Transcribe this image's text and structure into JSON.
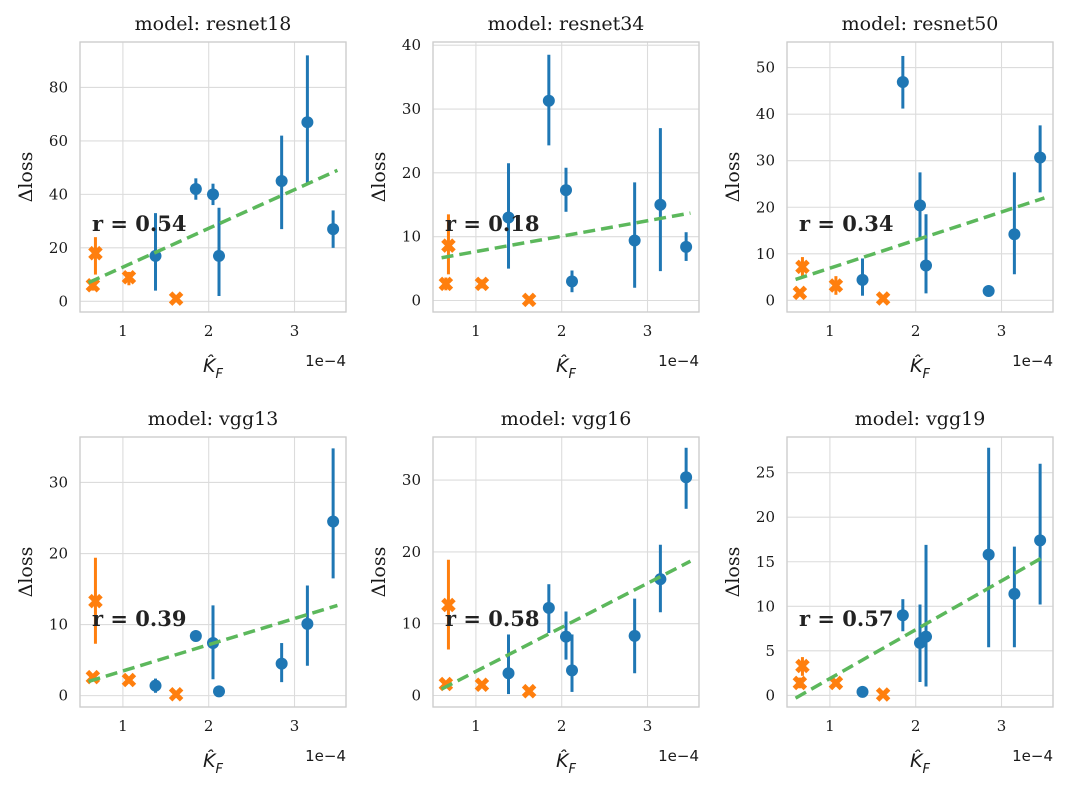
{
  "colors": {
    "blue": "#1f77b4",
    "orange": "#ff7f0e",
    "green": "#5cb85c"
  },
  "chart_data": [
    {
      "type": "scatter",
      "title": "model: resnet18",
      "xlabel": "\\hat{K}_F",
      "xlabel_display": "K̂",
      "xlabel_sub": "F",
      "ylabel": "Δloss",
      "x_offset_text": "1e−4",
      "xlim": [
        0.5,
        3.6
      ],
      "ylim": [
        -4,
        97
      ],
      "xticks": [
        1,
        2,
        3
      ],
      "yticks": [
        0,
        20,
        40,
        60,
        80
      ],
      "r_text": "r = 0.54",
      "fit_line": [
        [
          0.6,
          7
        ],
        [
          3.5,
          49
        ]
      ],
      "series": [
        {
          "name": "blue",
          "marker": "circle",
          "points": [
            {
              "x": 1.38,
              "y": 17,
              "err": [
                4,
                33
              ]
            },
            {
              "x": 1.85,
              "y": 42,
              "err": [
                38,
                46
              ]
            },
            {
              "x": 2.05,
              "y": 40,
              "err": [
                36,
                44
              ]
            },
            {
              "x": 2.12,
              "y": 17,
              "err": [
                2,
                35
              ]
            },
            {
              "x": 2.85,
              "y": 45,
              "err": [
                27,
                62
              ]
            },
            {
              "x": 3.15,
              "y": 67,
              "err": [
                44,
                92
              ]
            },
            {
              "x": 3.45,
              "y": 27,
              "err": [
                20,
                34
              ]
            }
          ]
        },
        {
          "name": "orange",
          "marker": "x",
          "points": [
            {
              "x": 0.65,
              "y": 6,
              "err": [
                4,
                8
              ]
            },
            {
              "x": 0.68,
              "y": 18,
              "err": [
                10,
                24
              ]
            },
            {
              "x": 1.07,
              "y": 9,
              "err": [
                6,
                11
              ]
            },
            {
              "x": 1.62,
              "y": 1,
              "err": [
                0,
                2
              ]
            }
          ]
        }
      ]
    },
    {
      "type": "scatter",
      "title": "model: resnet34",
      "xlabel": "\\hat{K}_F",
      "xlabel_display": "K̂",
      "xlabel_sub": "F",
      "ylabel": "Δloss",
      "x_offset_text": "1e−4",
      "xlim": [
        0.5,
        3.6
      ],
      "ylim": [
        -1.8,
        40.5
      ],
      "xticks": [
        1,
        2,
        3
      ],
      "yticks": [
        0,
        10,
        20,
        30,
        40
      ],
      "r_text": "r = 0.18",
      "fit_line": [
        [
          0.6,
          6.7
        ],
        [
          3.5,
          13.7
        ]
      ],
      "series": [
        {
          "name": "blue",
          "marker": "circle",
          "points": [
            {
              "x": 1.38,
              "y": 13,
              "err": [
                5,
                21.5
              ]
            },
            {
              "x": 1.85,
              "y": 31.3,
              "err": [
                24.3,
                38.5
              ]
            },
            {
              "x": 2.05,
              "y": 17.3,
              "err": [
                13.9,
                20.8
              ]
            },
            {
              "x": 2.12,
              "y": 3,
              "err": [
                1.3,
                4.7
              ]
            },
            {
              "x": 2.85,
              "y": 9.4,
              "err": [
                2,
                18.5
              ]
            },
            {
              "x": 3.15,
              "y": 15,
              "err": [
                4.6,
                27
              ]
            },
            {
              "x": 3.45,
              "y": 8.4,
              "err": [
                6.2,
                10.7
              ]
            }
          ]
        },
        {
          "name": "orange",
          "marker": "x",
          "points": [
            {
              "x": 0.65,
              "y": 2.6,
              "err": [
                1.6,
                3.6
              ]
            },
            {
              "x": 0.68,
              "y": 8.6,
              "err": [
                4.1,
                13.5
              ]
            },
            {
              "x": 1.07,
              "y": 2.6,
              "err": [
                1.9,
                3.3
              ]
            },
            {
              "x": 1.62,
              "y": 0.1,
              "err": [
                0,
                0.5
              ]
            }
          ]
        }
      ]
    },
    {
      "type": "scatter",
      "title": "model: resnet50",
      "xlabel": "\\hat{K}_F",
      "xlabel_display": "K̂",
      "xlabel_sub": "F",
      "ylabel": "Δloss",
      "x_offset_text": "1e−4",
      "xlim": [
        0.5,
        3.6
      ],
      "ylim": [
        -2.5,
        55.5
      ],
      "xticks": [
        1,
        2,
        3
      ],
      "yticks": [
        0,
        10,
        20,
        30,
        40,
        50
      ],
      "r_text": "r = 0.34",
      "fit_line": [
        [
          0.6,
          4.5
        ],
        [
          3.5,
          22
        ]
      ],
      "series": [
        {
          "name": "blue",
          "marker": "circle",
          "points": [
            {
              "x": 1.38,
              "y": 4.4,
              "err": [
                1,
                9
              ]
            },
            {
              "x": 1.85,
              "y": 46.9,
              "err": [
                41.2,
                52.5
              ]
            },
            {
              "x": 2.05,
              "y": 20.4,
              "err": [
                13.4,
                27.5
              ]
            },
            {
              "x": 2.12,
              "y": 7.5,
              "err": [
                1.5,
                18.5
              ]
            },
            {
              "x": 2.85,
              "y": 2,
              "err": [
                1.5,
                2.5
              ]
            },
            {
              "x": 3.15,
              "y": 14.2,
              "err": [
                5.6,
                27.5
              ]
            },
            {
              "x": 3.45,
              "y": 30.7,
              "err": [
                23.2,
                37.6
              ]
            }
          ]
        },
        {
          "name": "orange",
          "marker": "x",
          "points": [
            {
              "x": 0.65,
              "y": 1.6,
              "err": [
                1,
                2.2
              ]
            },
            {
              "x": 0.68,
              "y": 7.2,
              "err": [
                4.8,
                9.3
              ]
            },
            {
              "x": 1.07,
              "y": 3.2,
              "err": [
                1.2,
                5.2
              ]
            },
            {
              "x": 1.62,
              "y": 0.4,
              "err": [
                0,
                0.8
              ]
            }
          ]
        }
      ]
    },
    {
      "type": "scatter",
      "title": "model: vgg13",
      "xlabel": "\\hat{K}_F",
      "xlabel_display": "K̂",
      "xlabel_sub": "F",
      "ylabel": "Δloss",
      "x_offset_text": "1e−4",
      "xlim": [
        0.5,
        3.6
      ],
      "ylim": [
        -1.6,
        36.4
      ],
      "xticks": [
        1,
        2,
        3
      ],
      "yticks": [
        0,
        10,
        20,
        30
      ],
      "r_text": "r = 0.39",
      "fit_line": [
        [
          0.6,
          2
        ],
        [
          3.5,
          12.7
        ]
      ],
      "series": [
        {
          "name": "blue",
          "marker": "circle",
          "points": [
            {
              "x": 1.38,
              "y": 1.4,
              "err": [
                0.4,
                2.4
              ]
            },
            {
              "x": 1.85,
              "y": 8.4,
              "err": [
                8,
                8.8
              ]
            },
            {
              "x": 2.05,
              "y": 7.4,
              "err": [
                2.3,
                12.7
              ]
            },
            {
              "x": 2.12,
              "y": 0.6,
              "err": [
                0.4,
                0.8
              ]
            },
            {
              "x": 2.85,
              "y": 4.5,
              "err": [
                1.9,
                7.4
              ]
            },
            {
              "x": 3.15,
              "y": 10.1,
              "err": [
                4.2,
                15.5
              ]
            },
            {
              "x": 3.45,
              "y": 24.5,
              "err": [
                16.5,
                34.8
              ]
            }
          ]
        },
        {
          "name": "orange",
          "marker": "x",
          "points": [
            {
              "x": 0.65,
              "y": 2.6,
              "err": [
                2.1,
                3
              ]
            },
            {
              "x": 0.68,
              "y": 13.3,
              "err": [
                7.3,
                19.4
              ]
            },
            {
              "x": 1.07,
              "y": 2.2,
              "err": [
                1.7,
                2.6
              ]
            },
            {
              "x": 1.62,
              "y": 0.2,
              "err": [
                0,
                0.5
              ]
            }
          ]
        }
      ]
    },
    {
      "type": "scatter",
      "title": "model: vgg16",
      "xlabel": "\\hat{K}_F",
      "xlabel_display": "K̂",
      "xlabel_sub": "F",
      "ylabel": "Δloss",
      "x_offset_text": "1e−4",
      "xlim": [
        0.5,
        3.6
      ],
      "ylim": [
        -1.6,
        36
      ],
      "xticks": [
        1,
        2,
        3
      ],
      "yticks": [
        0,
        10,
        20,
        30
      ],
      "r_text": "r = 0.58",
      "fit_line": [
        [
          0.6,
          0.9
        ],
        [
          3.5,
          18.7
        ]
      ],
      "series": [
        {
          "name": "blue",
          "marker": "circle",
          "points": [
            {
              "x": 1.38,
              "y": 3.1,
              "err": [
                0.2,
                8.5
              ]
            },
            {
              "x": 1.85,
              "y": 12.2,
              "err": [
                8.7,
                15.5
              ]
            },
            {
              "x": 2.05,
              "y": 8.2,
              "err": [
                5,
                11.7
              ]
            },
            {
              "x": 2.12,
              "y": 3.5,
              "err": [
                0.5,
                8.5
              ]
            },
            {
              "x": 2.85,
              "y": 8.3,
              "err": [
                3.1,
                13.5
              ]
            },
            {
              "x": 3.15,
              "y": 16.2,
              "err": [
                11.6,
                21
              ]
            },
            {
              "x": 3.45,
              "y": 30.4,
              "err": [
                26,
                34.5
              ]
            }
          ]
        },
        {
          "name": "orange",
          "marker": "x",
          "points": [
            {
              "x": 0.65,
              "y": 1.6,
              "err": [
                1.1,
                2
              ]
            },
            {
              "x": 0.68,
              "y": 12.6,
              "err": [
                6.4,
                18.9
              ]
            },
            {
              "x": 1.07,
              "y": 1.5,
              "err": [
                1.1,
                1.9
              ]
            },
            {
              "x": 1.62,
              "y": 0.6,
              "err": [
                0.2,
                1
              ]
            }
          ]
        }
      ]
    },
    {
      "type": "scatter",
      "title": "model: vgg19",
      "xlabel": "\\hat{K}_F",
      "xlabel_display": "K̂",
      "xlabel_sub": "F",
      "ylabel": "Δloss",
      "x_offset_text": "1e−4",
      "xlim": [
        0.5,
        3.6
      ],
      "ylim": [
        -1.3,
        29
      ],
      "xticks": [
        1,
        2,
        3
      ],
      "yticks": [
        0,
        5,
        10,
        15,
        20,
        25
      ],
      "r_text": "r = 0.57",
      "fit_line": [
        [
          0.6,
          -0.3
        ],
        [
          3.5,
          15.6
        ]
      ],
      "series": [
        {
          "name": "blue",
          "marker": "circle",
          "points": [
            {
              "x": 1.38,
              "y": 0.4,
              "err": [
                0.2,
                0.6
              ]
            },
            {
              "x": 1.85,
              "y": 9,
              "err": [
                7.2,
                10.8
              ]
            },
            {
              "x": 2.05,
              "y": 5.9,
              "err": [
                1.5,
                10.2
              ]
            },
            {
              "x": 2.12,
              "y": 6.6,
              "err": [
                1,
                16.9
              ]
            },
            {
              "x": 2.85,
              "y": 15.8,
              "err": [
                5.4,
                27.8
              ]
            },
            {
              "x": 3.15,
              "y": 11.4,
              "err": [
                5.4,
                16.7
              ]
            },
            {
              "x": 3.45,
              "y": 17.4,
              "err": [
                10.2,
                26
              ]
            }
          ]
        },
        {
          "name": "orange",
          "marker": "x",
          "points": [
            {
              "x": 0.65,
              "y": 1.4,
              "err": [
                0.8,
                2
              ]
            },
            {
              "x": 0.68,
              "y": 3.3,
              "err": [
                2.2,
                4.3
              ]
            },
            {
              "x": 1.07,
              "y": 1.4,
              "err": [
                1,
                1.8
              ]
            },
            {
              "x": 1.62,
              "y": 0.1,
              "err": [
                0,
                0.3
              ]
            }
          ]
        }
      ]
    }
  ]
}
